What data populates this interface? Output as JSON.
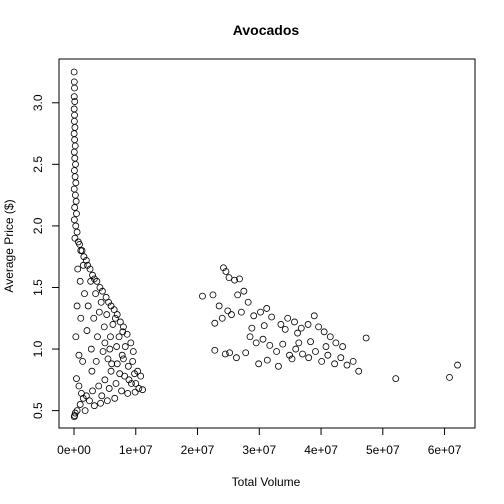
{
  "chart_data": {
    "type": "scatter",
    "title": "Avocados",
    "xlabel": "Total Volume",
    "ylabel": "Average Price ($)",
    "xlim": [
      0,
      62500000
    ],
    "ylim": [
      0.44,
      3.25
    ],
    "x_ticks": [
      {
        "value": 0,
        "label": "0e+00"
      },
      {
        "value": 10000000,
        "label": "1e+07"
      },
      {
        "value": 20000000,
        "label": "2e+07"
      },
      {
        "value": 30000000,
        "label": "3e+07"
      },
      {
        "value": 40000000,
        "label": "4e+07"
      },
      {
        "value": 50000000,
        "label": "5e+07"
      },
      {
        "value": 60000000,
        "label": "6e+07"
      }
    ],
    "y_ticks": [
      {
        "value": 0.5,
        "label": "0.5"
      },
      {
        "value": 1.0,
        "label": "1.0"
      },
      {
        "value": 1.5,
        "label": "1.5"
      },
      {
        "value": 2.0,
        "label": "2.0"
      },
      {
        "value": 2.5,
        "label": "2.5"
      },
      {
        "value": 3.0,
        "label": "3.0"
      }
    ],
    "grid": false,
    "marker": "open-circle",
    "series": [
      {
        "points": [
          [
            20000,
            3.25
          ],
          [
            50000,
            3.17
          ],
          [
            80000,
            3.12
          ],
          [
            40000,
            3.05
          ],
          [
            120000,
            3.01
          ],
          [
            30000,
            2.95
          ],
          [
            90000,
            2.9
          ],
          [
            60000,
            2.85
          ],
          [
            150000,
            2.8
          ],
          [
            20000,
            2.75
          ],
          [
            100000,
            2.7
          ],
          [
            200000,
            2.65
          ],
          [
            50000,
            2.6
          ],
          [
            130000,
            2.55
          ],
          [
            250000,
            2.5
          ],
          [
            70000,
            2.45
          ],
          [
            180000,
            2.4
          ],
          [
            300000,
            2.35
          ],
          [
            40000,
            2.3
          ],
          [
            220000,
            2.25
          ],
          [
            350000,
            2.2
          ],
          [
            110000,
            2.15
          ],
          [
            400000,
            2.1
          ],
          [
            60000,
            2.05
          ],
          [
            280000,
            2.0
          ],
          [
            500000,
            1.95
          ],
          [
            150000,
            1.9
          ],
          [
            700000,
            1.87
          ],
          [
            900000,
            1.85
          ],
          [
            1100000,
            1.8
          ],
          [
            1300000,
            1.8
          ],
          [
            1600000,
            1.75
          ],
          [
            2000000,
            1.72
          ],
          [
            2200000,
            1.68
          ],
          [
            2600000,
            1.65
          ],
          [
            3000000,
            1.6
          ],
          [
            3300000,
            1.57
          ],
          [
            3700000,
            1.55
          ],
          [
            4200000,
            1.5
          ],
          [
            4600000,
            1.47
          ],
          [
            5200000,
            1.42
          ],
          [
            5600000,
            1.38
          ],
          [
            6000000,
            1.35
          ],
          [
            6500000,
            1.32
          ],
          [
            7000000,
            1.28
          ],
          [
            7500000,
            1.22
          ],
          [
            8000000,
            1.18
          ],
          [
            8600000,
            1.12
          ],
          [
            9200000,
            1.05
          ],
          [
            9600000,
            0.98
          ],
          [
            8000000,
            0.92
          ],
          [
            7000000,
            0.88
          ],
          [
            6000000,
            0.82
          ],
          [
            5000000,
            0.75
          ],
          [
            4000000,
            0.7
          ],
          [
            3000000,
            0.66
          ],
          [
            2000000,
            0.62
          ],
          [
            1500000,
            0.6
          ],
          [
            1000000,
            0.55
          ],
          [
            500000,
            0.5
          ],
          [
            200000,
            0.48
          ],
          [
            100000,
            0.46
          ],
          [
            50000,
            0.45
          ],
          [
            1800000,
            0.5
          ],
          [
            3300000,
            0.54
          ],
          [
            4500000,
            0.62
          ],
          [
            5700000,
            0.68
          ],
          [
            6800000,
            0.72
          ],
          [
            8200000,
            0.78
          ],
          [
            9300000,
            0.72
          ],
          [
            10300000,
            0.82
          ],
          [
            10800000,
            0.78
          ],
          [
            10500000,
            0.68
          ],
          [
            11100000,
            0.67
          ],
          [
            9900000,
            0.65
          ],
          [
            8700000,
            0.64
          ],
          [
            7700000,
            0.66
          ],
          [
            6600000,
            0.6
          ],
          [
            5400000,
            0.58
          ],
          [
            4300000,
            0.56
          ],
          [
            2500000,
            0.58
          ],
          [
            1200000,
            0.64
          ],
          [
            800000,
            0.7
          ],
          [
            400000,
            0.76
          ],
          [
            1400000,
            0.9
          ],
          [
            2800000,
            1.0
          ],
          [
            3800000,
            1.1
          ],
          [
            4900000,
            1.18
          ],
          [
            5900000,
            1.1
          ],
          [
            6900000,
            1.02
          ],
          [
            7800000,
            0.95
          ],
          [
            8800000,
            0.86
          ],
          [
            9800000,
            0.8
          ],
          [
            3200000,
            1.25
          ],
          [
            2300000,
            1.35
          ],
          [
            1700000,
            1.45
          ],
          [
            1000000,
            1.55
          ],
          [
            600000,
            1.65
          ],
          [
            4400000,
            1.38
          ],
          [
            5300000,
            1.28
          ],
          [
            6300000,
            1.2
          ],
          [
            7300000,
            1.1
          ],
          [
            8300000,
            1.02
          ],
          [
            2100000,
            1.15
          ],
          [
            1100000,
            1.25
          ],
          [
            500000,
            1.35
          ],
          [
            300000,
            1.1
          ],
          [
            800000,
            0.95
          ],
          [
            2900000,
            0.82
          ],
          [
            3600000,
            0.9
          ],
          [
            4700000,
            0.98
          ],
          [
            5500000,
            0.92
          ],
          [
            6100000,
            0.88
          ],
          [
            7400000,
            0.8
          ],
          [
            8900000,
            0.75
          ],
          [
            9500000,
            0.9
          ],
          [
            10000000,
            0.72
          ],
          [
            6700000,
            1.25
          ],
          [
            7900000,
            1.14
          ],
          [
            2700000,
            1.55
          ],
          [
            3500000,
            1.45
          ],
          [
            1500000,
            1.68
          ],
          [
            4100000,
            1.3
          ],
          [
            5000000,
            1.05
          ],
          [
            5800000,
            1.0
          ],
          [
            20800000,
            1.43
          ],
          [
            22500000,
            1.44
          ],
          [
            24200000,
            1.66
          ],
          [
            24600000,
            1.63
          ],
          [
            25100000,
            1.58
          ],
          [
            26000000,
            1.56
          ],
          [
            26800000,
            1.57
          ],
          [
            27500000,
            1.47
          ],
          [
            26500000,
            1.44
          ],
          [
            23500000,
            1.35
          ],
          [
            24900000,
            1.31
          ],
          [
            25500000,
            1.28
          ],
          [
            22800000,
            1.21
          ],
          [
            24000000,
            1.25
          ],
          [
            27100000,
            1.3
          ],
          [
            28200000,
            1.38
          ],
          [
            29100000,
            1.27
          ],
          [
            30200000,
            1.3
          ],
          [
            31200000,
            1.33
          ],
          [
            32000000,
            1.26
          ],
          [
            33500000,
            1.2
          ],
          [
            34600000,
            1.25
          ],
          [
            35700000,
            1.22
          ],
          [
            36800000,
            1.17
          ],
          [
            37900000,
            1.2
          ],
          [
            38900000,
            1.27
          ],
          [
            39600000,
            1.18
          ],
          [
            40500000,
            1.14
          ],
          [
            41500000,
            1.1
          ],
          [
            42400000,
            1.05
          ],
          [
            43500000,
            1.02
          ],
          [
            47300000,
            1.09
          ],
          [
            28500000,
            1.1
          ],
          [
            29500000,
            1.05
          ],
          [
            30600000,
            1.08
          ],
          [
            31700000,
            1.03
          ],
          [
            32800000,
            0.98
          ],
          [
            33800000,
            1.04
          ],
          [
            34900000,
            0.95
          ],
          [
            35900000,
            1.0
          ],
          [
            37000000,
            0.96
          ],
          [
            38000000,
            0.93
          ],
          [
            39100000,
            0.98
          ],
          [
            40100000,
            0.9
          ],
          [
            41100000,
            0.95
          ],
          [
            42200000,
            0.88
          ],
          [
            43200000,
            0.93
          ],
          [
            44200000,
            0.87
          ],
          [
            45200000,
            0.9
          ],
          [
            46100000,
            0.82
          ],
          [
            27800000,
            0.97
          ],
          [
            26300000,
            0.93
          ],
          [
            25200000,
            0.97
          ],
          [
            24500000,
            0.96
          ],
          [
            22800000,
            0.99
          ],
          [
            29900000,
            0.88
          ],
          [
            31300000,
            0.91
          ],
          [
            33100000,
            0.86
          ],
          [
            35300000,
            0.92
          ],
          [
            36400000,
            1.05
          ],
          [
            38300000,
            1.06
          ],
          [
            40800000,
            1.02
          ],
          [
            28800000,
            1.17
          ],
          [
            30800000,
            1.19
          ],
          [
            34200000,
            1.16
          ],
          [
            36200000,
            1.13
          ],
          [
            52100000,
            0.76
          ],
          [
            60800000,
            0.77
          ],
          [
            62100000,
            0.87
          ]
        ]
      }
    ]
  }
}
